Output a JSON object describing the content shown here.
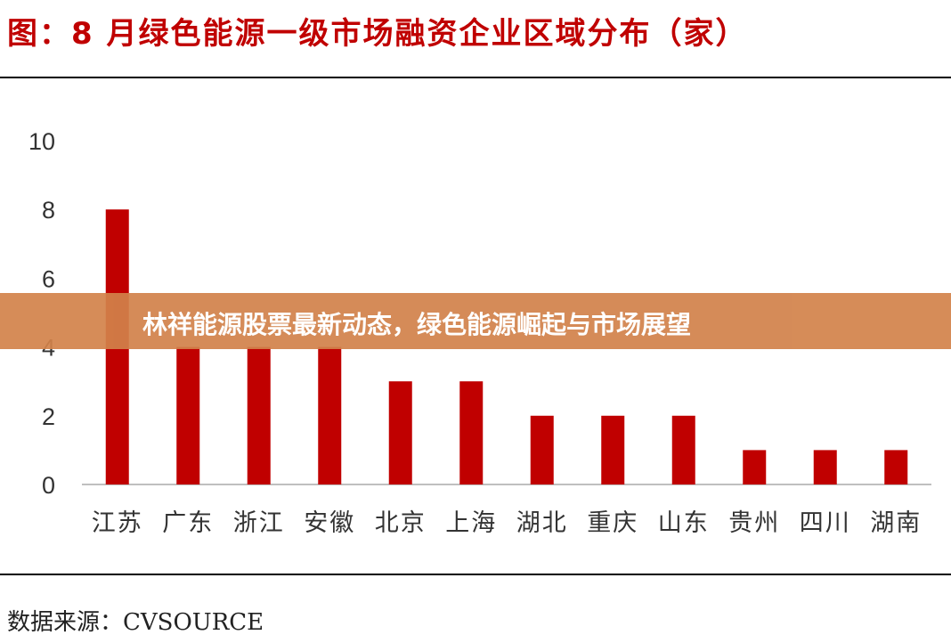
{
  "chart_data": {
    "type": "bar",
    "title": "图：8 月绿色能源一级市场融资企业区域分布（家）",
    "categories": [
      "江苏",
      "广东",
      "浙江",
      "安徽",
      "北京",
      "上海",
      "湖北",
      "重庆",
      "山东",
      "贵州",
      "四川",
      "湖南"
    ],
    "values": [
      8,
      4,
      4,
      4,
      3,
      3,
      2,
      2,
      2,
      1,
      1,
      1
    ],
    "ylim": [
      0,
      10
    ],
    "yticks": [
      0,
      2,
      4,
      6,
      8,
      10
    ],
    "xlabel": "",
    "ylabel": "",
    "grid": false,
    "bar_color": "#c00000",
    "source": "数据来源：CVSOURCE"
  },
  "overlay": {
    "banner_text": "林祥能源股票最新动态，绿色能源崛起与市场展望",
    "banner_color": "#d2824a"
  }
}
